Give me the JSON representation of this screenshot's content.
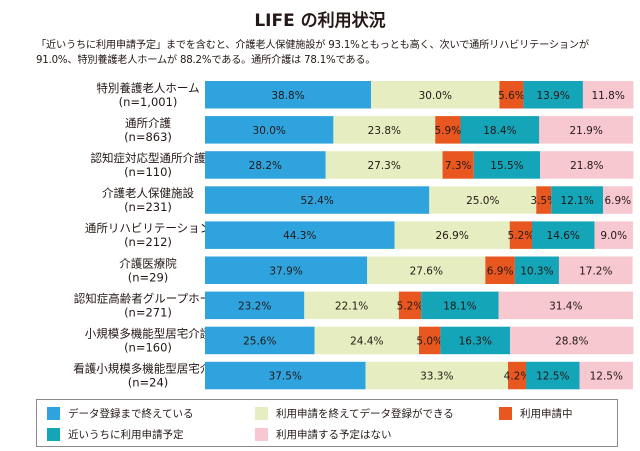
{
  "header": {
    "title": "LIFE の利用状況",
    "subtitle": "「近いうちに利用申請予定」までを含むと、介護老人保健施設が 93.1%ともっとも高く、次いで通所リハビリテーションが 91.0%、特別養護老人ホームが 88.2%である。通所介護は 78.1%である。"
  },
  "chart_data": {
    "type": "bar",
    "orientation": "horizontal",
    "stacked": true,
    "percent_stacked": true,
    "title": "LIFE の利用状況",
    "xlim": [
      0,
      100
    ],
    "categories": [
      {
        "name": "特別養護老人ホーム",
        "n": "(n=1,001)"
      },
      {
        "name": "通所介護",
        "n": "(n=863)"
      },
      {
        "name": "認知症対応型通所介護",
        "n": "(n=110)"
      },
      {
        "name": "介護老人保健施設",
        "n": "(n=231)"
      },
      {
        "name": "通所リハビリテーション",
        "n": "(n=212)"
      },
      {
        "name": "介護医療院",
        "n": "(n=29)"
      },
      {
        "name": "認知症高齢者グループホーム",
        "n": "(n=271)"
      },
      {
        "name": "小規模多機能型居宅介護",
        "n": "(n=160)"
      },
      {
        "name": "看護小規模多機能型居宅介護",
        "n": "(n=24)"
      }
    ],
    "series": [
      {
        "name": "データ登録まで終えている",
        "color": "#2fa3dd",
        "values": [
          38.8,
          30.0,
          28.2,
          52.4,
          44.3,
          37.9,
          23.2,
          25.6,
          37.5
        ]
      },
      {
        "name": "利用申請を終えてデータ登録ができる",
        "color": "#e6eec1",
        "values": [
          30.0,
          23.8,
          27.3,
          25.0,
          26.9,
          27.6,
          22.1,
          24.4,
          33.3
        ]
      },
      {
        "name": "利用申請中",
        "color": "#e8571f",
        "values": [
          5.6,
          5.9,
          7.3,
          3.5,
          5.2,
          6.9,
          5.2,
          5.0,
          4.2
        ]
      },
      {
        "name": "近いうちに利用申請予定",
        "color": "#14a5b8",
        "values": [
          13.9,
          18.4,
          15.5,
          12.1,
          14.6,
          10.3,
          18.1,
          16.3,
          12.5
        ]
      },
      {
        "name": "利用申請する予定はない",
        "color": "#f7c8cf",
        "values": [
          11.8,
          21.9,
          21.8,
          6.9,
          9.0,
          17.2,
          31.4,
          28.8,
          12.5
        ]
      }
    ],
    "legend_position": "bottom",
    "value_suffix": "%"
  }
}
